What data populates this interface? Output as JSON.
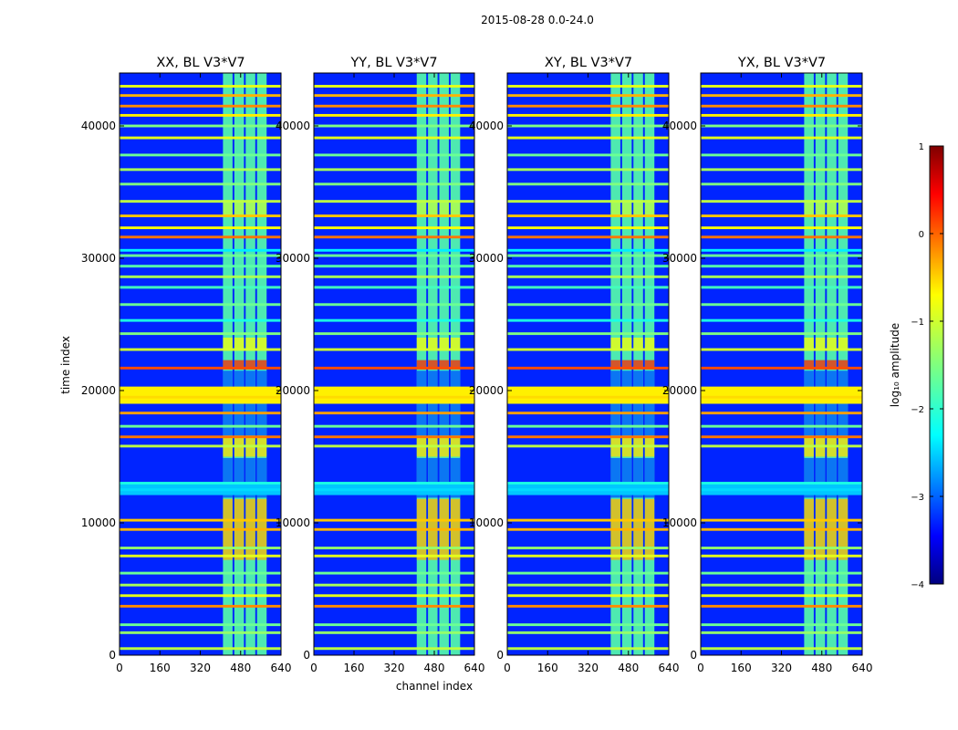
{
  "figure": {
    "suptitle": "2015-08-28 0.0-24.0",
    "ylabel": "time index",
    "xlabel": "channel index",
    "colorbar_label": "log₁₀ amplitude"
  },
  "chart_data": {
    "type": "heatmap",
    "title": "2015-08-28 0.0-24.0",
    "xlabel": "channel index",
    "ylabel": "time index",
    "xlim": [
      0,
      640
    ],
    "ylim": [
      0,
      44000
    ],
    "xticks": [
      0,
      160,
      320,
      480,
      640
    ],
    "yticks": [
      0,
      10000,
      20000,
      30000,
      40000
    ],
    "xtick_labels": [
      "0",
      "160",
      "320",
      "480",
      "640"
    ],
    "ytick_labels": [
      "0",
      "10000",
      "20000",
      "30000",
      "40000"
    ],
    "panels": [
      {
        "name": "XX",
        "title": "XX, BL V3*V7"
      },
      {
        "name": "YY",
        "title": "YY, BL V3*V7"
      },
      {
        "name": "XY",
        "title": "XY, BL V3*V7"
      },
      {
        "name": "YX",
        "title": "YX, BL V3*V7"
      }
    ],
    "colorbar": {
      "label": "log₁₀ amplitude",
      "vmin": -4,
      "vmax": 1,
      "colormap": "jet",
      "ticks": [
        1,
        0,
        -1,
        -2,
        -3,
        -4
      ],
      "tick_labels": [
        "1",
        "0",
        "−1",
        "−2",
        "−3",
        "−4"
      ]
    },
    "background_level": -3.2,
    "rfi_channel_band": [
      410,
      590
    ],
    "rfi_subband_starts": [
      410,
      455,
      500,
      545
    ],
    "rfi_subband_width": 38,
    "rfi_band_level": -1.7,
    "full_rows": [
      {
        "t": 500,
        "level": -1.2
      },
      {
        "t": 1700,
        "level": -1.4
      },
      {
        "t": 2300,
        "level": -1.6
      },
      {
        "t": 3700,
        "level": -0.3
      },
      {
        "t": 4500,
        "level": -1.0
      },
      {
        "t": 5300,
        "level": -1.3
      },
      {
        "t": 6200,
        "level": -1.6
      },
      {
        "t": 7500,
        "level": -1.0
      },
      {
        "t": 8100,
        "level": -1.4
      },
      {
        "t": 9500,
        "level": -0.5
      },
      {
        "t": 10200,
        "level": -0.6
      },
      {
        "t": 12500,
        "level": -2.3
      },
      {
        "t": 13000,
        "level": -2.0
      },
      {
        "t": 15800,
        "level": -1.2
      },
      {
        "t": 16500,
        "level": -0.2
      },
      {
        "t": 17300,
        "level": -1.6
      },
      {
        "t": 18300,
        "level": -0.4
      },
      {
        "t": 19500,
        "level": -0.7
      },
      {
        "t": 20100,
        "level": -0.8
      },
      {
        "t": 21700,
        "level": 0.0
      },
      {
        "t": 23100,
        "level": -1.1
      },
      {
        "t": 24300,
        "level": -1.5
      },
      {
        "t": 25300,
        "level": -2.0
      },
      {
        "t": 26500,
        "level": -1.6
      },
      {
        "t": 27800,
        "level": -1.8
      },
      {
        "t": 28600,
        "level": -1.3
      },
      {
        "t": 29400,
        "level": -1.7
      },
      {
        "t": 30200,
        "level": -1.6
      },
      {
        "t": 30600,
        "level": -2.2
      },
      {
        "t": 31600,
        "level": -0.2
      },
      {
        "t": 32300,
        "level": -0.9
      },
      {
        "t": 33200,
        "level": -0.6
      },
      {
        "t": 34300,
        "level": -1.2
      },
      {
        "t": 35600,
        "level": -1.5
      },
      {
        "t": 36700,
        "level": -1.3
      },
      {
        "t": 37800,
        "level": -1.6
      },
      {
        "t": 39100,
        "level": -1.0
      },
      {
        "t": 40000,
        "level": -1.5
      },
      {
        "t": 40800,
        "level": -0.8
      },
      {
        "t": 41500,
        "level": -0.3
      },
      {
        "t": 42300,
        "level": -0.5
      },
      {
        "t": 43000,
        "level": -1.0
      }
    ],
    "thick_bands": [
      {
        "t_start": 19000,
        "t_end": 20300,
        "level": -0.8
      },
      {
        "t_start": 12100,
        "t_end": 12900,
        "level": -2.4
      }
    ],
    "rfi_hot_blocks": [
      {
        "t_start": 7200,
        "t_end": 11800,
        "level": -0.5
      },
      {
        "t_start": 15000,
        "t_end": 16500,
        "level": -0.7
      },
      {
        "t_start": 21600,
        "t_end": 22300,
        "level": 0.2
      },
      {
        "t_start": 23000,
        "t_end": 24000,
        "level": -0.9
      },
      {
        "t_start": 33200,
        "t_end": 34400,
        "level": -1.2
      }
    ],
    "rfi_gaps": [
      {
        "t_start": 11900,
        "t_end": 14900
      },
      {
        "t_start": 16600,
        "t_end": 21500
      }
    ]
  }
}
